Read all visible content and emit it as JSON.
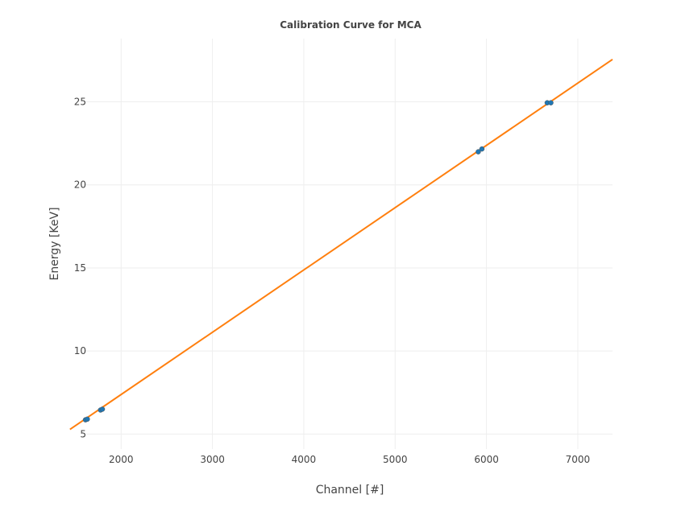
{
  "chart_data": {
    "type": "scatter",
    "title": "Calibration Curve for MCA",
    "xlabel": "Channel [#]",
    "ylabel": "Energy [KeV]",
    "xlim": [
      1380,
      7380
    ],
    "ylim": [
      4.1,
      28.8
    ],
    "xticks": [
      2000,
      3000,
      4000,
      5000,
      6000,
      7000
    ],
    "yticks": [
      5,
      10,
      15,
      20,
      25
    ],
    "grid": true,
    "series": [
      {
        "mode": "markers",
        "color": "#1f77b4",
        "points": [
          {
            "x": 1610,
            "y": 5.86
          },
          {
            "x": 1630,
            "y": 5.9
          },
          {
            "x": 1775,
            "y": 6.45
          },
          {
            "x": 1795,
            "y": 6.5
          },
          {
            "x": 5910,
            "y": 21.99
          },
          {
            "x": 5950,
            "y": 22.16
          },
          {
            "x": 6665,
            "y": 24.94
          },
          {
            "x": 6705,
            "y": 24.94
          }
        ]
      },
      {
        "mode": "line",
        "color": "#ff7f0e",
        "points": [
          {
            "x": 1440,
            "y": 5.28
          },
          {
            "x": 7380,
            "y": 27.55
          }
        ]
      }
    ]
  }
}
